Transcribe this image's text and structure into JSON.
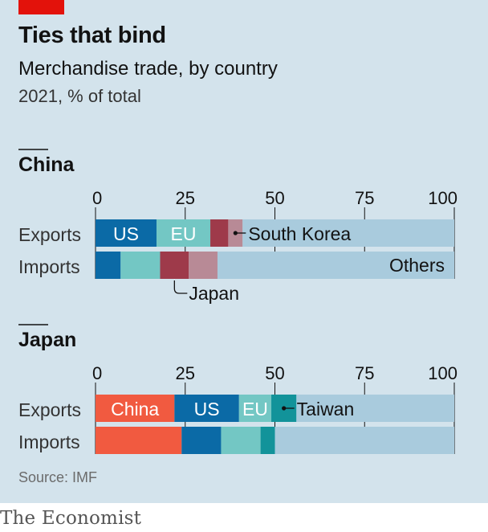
{
  "title": "Ties that bind",
  "subtitle": "Merchandise trade, by country",
  "unit": "2021, % of total",
  "source": "Source: IMF",
  "brand": "The Economist",
  "colors": {
    "China": "#f15a40",
    "US": "#0b6aa6",
    "EU": "#73c7c4",
    "Japan": "#9e3a4a",
    "South Korea": "#b88a96",
    "Taiwan": "#12939a",
    "Others": "#a9cbdd"
  },
  "chart_data": [
    {
      "type": "bar",
      "stacked": true,
      "orientation": "horizontal",
      "panel_title": "China",
      "xlim": [
        0,
        100
      ],
      "ticks": [
        "0",
        "25",
        "50",
        "75",
        "100"
      ],
      "categories": [
        "Exports",
        "Imports"
      ],
      "series": [
        {
          "name": "US",
          "values": [
            17,
            7
          ]
        },
        {
          "name": "EU",
          "values": [
            15,
            11
          ]
        },
        {
          "name": "Japan",
          "values": [
            5,
            8
          ]
        },
        {
          "name": "South Korea",
          "values": [
            4,
            8
          ]
        },
        {
          "name": "Others",
          "values": [
            59,
            66
          ]
        }
      ],
      "labels": [
        {
          "text": "US",
          "row": 0,
          "series": "US",
          "kind": "inside"
        },
        {
          "text": "EU",
          "row": 0,
          "series": "EU",
          "kind": "inside"
        },
        {
          "text": "South Korea",
          "row": 0,
          "series": "South Korea",
          "kind": "callout-right"
        },
        {
          "text": "Others",
          "row": 1,
          "series": "Others",
          "kind": "right-end"
        },
        {
          "text": "Japan",
          "row": 1,
          "series": "Japan",
          "kind": "callout-below"
        }
      ]
    },
    {
      "type": "bar",
      "stacked": true,
      "orientation": "horizontal",
      "panel_title": "Japan",
      "xlim": [
        0,
        100
      ],
      "ticks": [
        "0",
        "25",
        "50",
        "75",
        "100"
      ],
      "categories": [
        "Exports",
        "Imports"
      ],
      "series": [
        {
          "name": "China",
          "values": [
            22,
            24
          ]
        },
        {
          "name": "US",
          "values": [
            18,
            11
          ]
        },
        {
          "name": "EU",
          "values": [
            9,
            11
          ]
        },
        {
          "name": "Taiwan",
          "values": [
            7,
            4
          ]
        },
        {
          "name": "Others",
          "values": [
            44,
            50
          ]
        }
      ],
      "labels": [
        {
          "text": "China",
          "row": 0,
          "series": "China",
          "kind": "inside"
        },
        {
          "text": "US",
          "row": 0,
          "series": "US",
          "kind": "inside"
        },
        {
          "text": "EU",
          "row": 0,
          "series": "EU",
          "kind": "inside"
        },
        {
          "text": "Taiwan",
          "row": 0,
          "series": "Taiwan",
          "kind": "callout-right"
        }
      ]
    }
  ]
}
